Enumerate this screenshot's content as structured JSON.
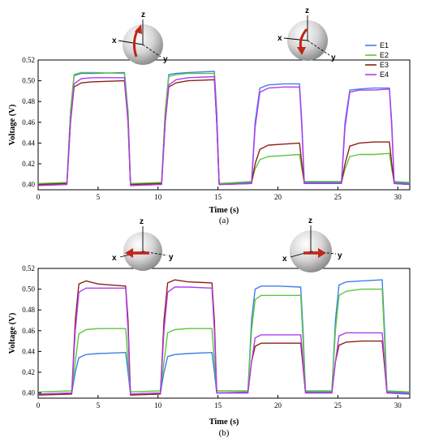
{
  "legend": [
    {
      "name": "E1",
      "color": "#3f7ee8"
    },
    {
      "name": "E2",
      "color": "#5cc63a"
    },
    {
      "name": "E3",
      "color": "#8b2214"
    },
    {
      "name": "E4",
      "color": "#b03cf0"
    }
  ],
  "sphere_axes": {
    "x": "x",
    "y": "y",
    "z": "z"
  },
  "chart_data": [
    {
      "type": "line",
      "caption": "(a)",
      "xlabel": "Time (s)",
      "ylabel": "Voltage (V)",
      "xlim": [
        0,
        31
      ],
      "ylim": [
        0.395,
        0.52
      ],
      "xticks": [
        0,
        5,
        10,
        15,
        20,
        25,
        30
      ],
      "yticks": [
        0.4,
        0.42,
        0.44,
        0.46,
        0.48,
        0.5,
        0.52
      ],
      "grid": false,
      "legend_position": "top-right",
      "series": [
        {
          "name": "E1",
          "color": "#3f7ee8",
          "x": [
            0,
            2.4,
            2.7,
            3.0,
            3.6,
            4.5,
            7.2,
            7.5,
            7.7,
            10.3,
            10.6,
            10.9,
            11.5,
            12.5,
            14.7,
            14.9,
            15.1,
            17.8,
            18.1,
            18.5,
            19.2,
            20.5,
            21.8,
            22.0,
            22.2,
            25.3,
            25.6,
            26.0,
            26.8,
            28.0,
            29.3,
            29.5,
            29.7,
            31
          ],
          "y": [
            0.4,
            0.401,
            0.47,
            0.505,
            0.507,
            0.507,
            0.508,
            0.47,
            0.4,
            0.401,
            0.47,
            0.506,
            0.507,
            0.508,
            0.509,
            0.47,
            0.401,
            0.402,
            0.46,
            0.493,
            0.496,
            0.497,
            0.497,
            0.46,
            0.402,
            0.402,
            0.46,
            0.491,
            0.492,
            0.493,
            0.493,
            0.46,
            0.402,
            0.401
          ]
        },
        {
          "name": "E2",
          "color": "#5cc63a",
          "x": [
            0,
            2.4,
            2.7,
            3.0,
            3.6,
            4.5,
            7.2,
            7.5,
            7.7,
            10.3,
            10.6,
            10.9,
            11.5,
            12.5,
            14.7,
            14.9,
            15.1,
            17.8,
            18.1,
            18.5,
            19.2,
            20.5,
            21.8,
            22.0,
            22.2,
            25.3,
            25.6,
            26.0,
            26.8,
            28.0,
            29.3,
            29.5,
            29.7,
            31
          ],
          "y": [
            0.401,
            0.402,
            0.47,
            0.506,
            0.508,
            0.508,
            0.507,
            0.47,
            0.401,
            0.402,
            0.47,
            0.504,
            0.506,
            0.507,
            0.507,
            0.46,
            0.401,
            0.403,
            0.415,
            0.424,
            0.427,
            0.428,
            0.429,
            0.415,
            0.403,
            0.403,
            0.415,
            0.427,
            0.429,
            0.429,
            0.43,
            0.415,
            0.403,
            0.402
          ]
        },
        {
          "name": "E3",
          "color": "#8b2214",
          "x": [
            0,
            2.4,
            2.7,
            3.0,
            3.6,
            4.5,
            7.2,
            7.5,
            7.7,
            10.3,
            10.6,
            10.9,
            11.5,
            12.5,
            14.7,
            14.9,
            15.1,
            17.8,
            18.1,
            18.5,
            19.2,
            20.5,
            21.8,
            22.0,
            22.2,
            25.3,
            25.6,
            26.0,
            26.8,
            28.0,
            29.3,
            29.5,
            29.7,
            31
          ],
          "y": [
            0.4,
            0.401,
            0.46,
            0.494,
            0.498,
            0.499,
            0.5,
            0.46,
            0.4,
            0.401,
            0.46,
            0.494,
            0.498,
            0.5,
            0.501,
            0.46,
            0.4,
            0.401,
            0.42,
            0.434,
            0.438,
            0.439,
            0.44,
            0.42,
            0.401,
            0.401,
            0.42,
            0.437,
            0.44,
            0.441,
            0.441,
            0.42,
            0.401,
            0.4
          ]
        },
        {
          "name": "E4",
          "color": "#b03cf0",
          "x": [
            0,
            2.4,
            2.7,
            3.0,
            3.6,
            4.5,
            7.2,
            7.5,
            7.7,
            10.3,
            10.6,
            10.9,
            11.5,
            12.5,
            14.7,
            14.9,
            15.1,
            17.8,
            18.1,
            18.5,
            19.2,
            20.5,
            21.8,
            22.0,
            22.2,
            25.3,
            25.6,
            26.0,
            26.8,
            28.0,
            29.3,
            29.5,
            29.7,
            31
          ],
          "y": [
            0.399,
            0.4,
            0.46,
            0.497,
            0.502,
            0.503,
            0.503,
            0.46,
            0.399,
            0.4,
            0.46,
            0.496,
            0.501,
            0.503,
            0.504,
            0.46,
            0.4,
            0.401,
            0.455,
            0.489,
            0.493,
            0.494,
            0.494,
            0.455,
            0.401,
            0.401,
            0.455,
            0.489,
            0.491,
            0.491,
            0.492,
            0.455,
            0.401,
            0.4
          ]
        }
      ]
    },
    {
      "type": "line",
      "caption": "(b)",
      "xlabel": "Time (s)",
      "ylabel": "Voltage (V)",
      "xlim": [
        0,
        31
      ],
      "ylim": [
        0.395,
        0.52
      ],
      "xticks": [
        0,
        5,
        10,
        15,
        20,
        25,
        30
      ],
      "yticks": [
        0.4,
        0.42,
        0.44,
        0.46,
        0.48,
        0.5,
        0.52
      ],
      "grid": false,
      "series": [
        {
          "name": "E1",
          "color": "#3f7ee8",
          "x": [
            0,
            2.8,
            3.1,
            3.4,
            4.0,
            5.0,
            7.3,
            7.5,
            7.7,
            10.2,
            10.5,
            10.8,
            11.4,
            12.5,
            14.5,
            14.7,
            14.9,
            17.5,
            17.8,
            18.1,
            18.6,
            20.0,
            21.9,
            22.1,
            22.3,
            24.5,
            24.8,
            25.1,
            25.7,
            27.0,
            28.7,
            28.9,
            29.1,
            31
          ],
          "y": [
            0.399,
            0.4,
            0.42,
            0.434,
            0.437,
            0.438,
            0.439,
            0.42,
            0.399,
            0.4,
            0.42,
            0.435,
            0.437,
            0.438,
            0.439,
            0.42,
            0.4,
            0.401,
            0.47,
            0.5,
            0.503,
            0.503,
            0.502,
            0.46,
            0.401,
            0.401,
            0.47,
            0.504,
            0.507,
            0.508,
            0.509,
            0.46,
            0.401,
            0.4
          ]
        },
        {
          "name": "E2",
          "color": "#5cc63a",
          "x": [
            0,
            2.8,
            3.1,
            3.4,
            4.0,
            5.0,
            7.3,
            7.5,
            7.7,
            10.2,
            10.5,
            10.8,
            11.4,
            12.5,
            14.5,
            14.7,
            14.9,
            17.5,
            17.8,
            18.1,
            18.6,
            20.0,
            21.9,
            22.1,
            22.3,
            24.5,
            24.8,
            25.1,
            25.7,
            27.0,
            28.7,
            28.9,
            29.1,
            31
          ],
          "y": [
            0.401,
            0.402,
            0.43,
            0.457,
            0.461,
            0.462,
            0.462,
            0.43,
            0.401,
            0.402,
            0.43,
            0.458,
            0.461,
            0.462,
            0.462,
            0.43,
            0.402,
            0.402,
            0.46,
            0.49,
            0.494,
            0.494,
            0.494,
            0.45,
            0.402,
            0.402,
            0.46,
            0.494,
            0.498,
            0.5,
            0.5,
            0.45,
            0.402,
            0.401
          ]
        },
        {
          "name": "E3",
          "color": "#8b2214",
          "x": [
            0,
            2.8,
            3.1,
            3.4,
            4.0,
            5.0,
            7.3,
            7.5,
            7.7,
            10.2,
            10.5,
            10.8,
            11.4,
            12.5,
            14.5,
            14.7,
            14.9,
            17.5,
            17.8,
            18.1,
            18.6,
            20.0,
            21.9,
            22.1,
            22.3,
            24.5,
            24.8,
            25.1,
            25.7,
            27.0,
            28.7,
            28.9,
            29.1,
            31
          ],
          "y": [
            0.398,
            0.399,
            0.47,
            0.505,
            0.508,
            0.505,
            0.503,
            0.47,
            0.398,
            0.399,
            0.47,
            0.506,
            0.509,
            0.507,
            0.506,
            0.47,
            0.4,
            0.4,
            0.43,
            0.445,
            0.448,
            0.448,
            0.448,
            0.425,
            0.4,
            0.4,
            0.43,
            0.446,
            0.449,
            0.45,
            0.45,
            0.425,
            0.4,
            0.399
          ]
        },
        {
          "name": "E4",
          "color": "#b03cf0",
          "x": [
            0,
            2.8,
            3.1,
            3.4,
            4.0,
            5.0,
            7.3,
            7.5,
            7.7,
            10.2,
            10.5,
            10.8,
            11.4,
            12.5,
            14.5,
            14.7,
            14.9,
            17.5,
            17.8,
            18.1,
            18.6,
            20.0,
            21.9,
            22.1,
            22.3,
            24.5,
            24.8,
            25.1,
            25.7,
            27.0,
            28.7,
            28.9,
            29.1,
            31
          ],
          "y": [
            0.399,
            0.4,
            0.46,
            0.497,
            0.501,
            0.501,
            0.501,
            0.46,
            0.399,
            0.4,
            0.46,
            0.497,
            0.502,
            0.502,
            0.501,
            0.46,
            0.4,
            0.4,
            0.43,
            0.453,
            0.456,
            0.456,
            0.456,
            0.43,
            0.4,
            0.4,
            0.43,
            0.455,
            0.458,
            0.458,
            0.458,
            0.43,
            0.4,
            0.399
          ]
        }
      ]
    }
  ]
}
